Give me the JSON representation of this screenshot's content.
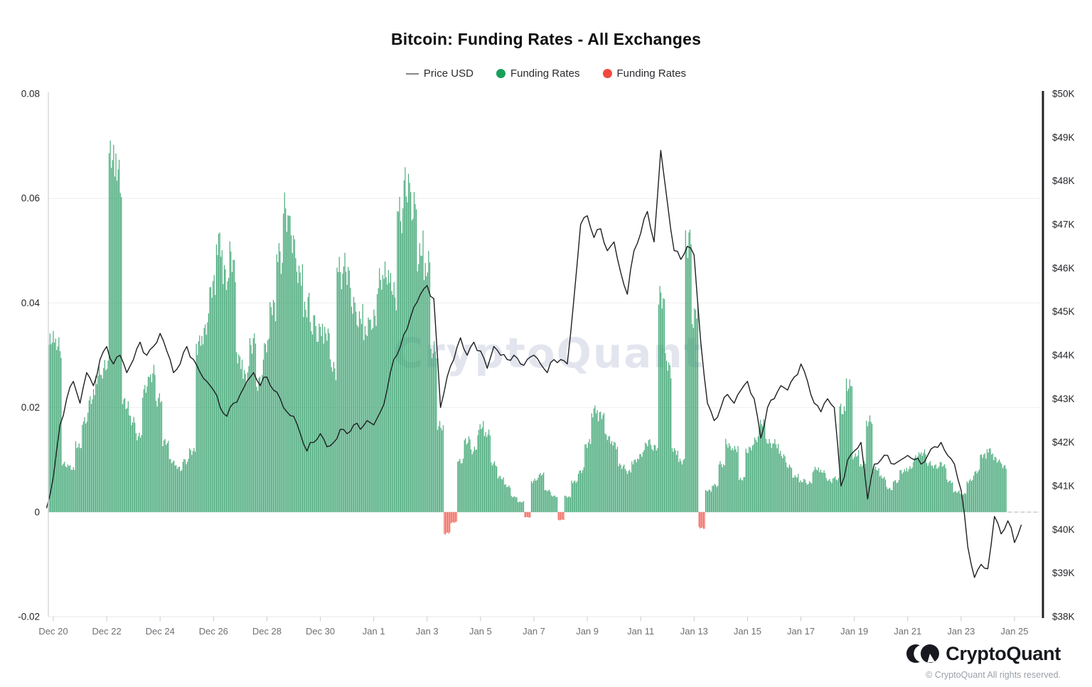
{
  "title": "Bitcoin: Funding Rates - All Exchanges",
  "legend": [
    {
      "label": "Price USD",
      "marker": "line",
      "color": "#85858b"
    },
    {
      "label": "Funding Rates",
      "marker": "dot",
      "color": "#18a05a"
    },
    {
      "label": "Funding Rates",
      "marker": "dot",
      "color": "#f04a3e"
    }
  ],
  "watermark": "CryptoQuant",
  "footer": {
    "brand": "CryptoQuant",
    "copyright": "© CryptoQuant All rights reserved."
  },
  "chart_data": {
    "type": "mixed",
    "title": "Bitcoin: Funding Rates - All Exchanges",
    "grid": "horizontal-only",
    "legend_position": "top-center",
    "watermark_color": "#e3e5ee",
    "left_axis": {
      "name": "Funding Rates",
      "min": -0.02,
      "max": 0.08,
      "ticks": [
        {
          "v": 0.08,
          "label": "0.08"
        },
        {
          "v": 0.06,
          "label": "0.06"
        },
        {
          "v": 0.04,
          "label": "0.04"
        },
        {
          "v": 0.02,
          "label": "0.02"
        },
        {
          "v": 0,
          "label": "0"
        },
        {
          "v": -0.02,
          "label": "-0.02"
        }
      ]
    },
    "right_axis": {
      "name": "Price USD",
      "min": 38000,
      "max": 50000,
      "ticks": [
        {
          "v": 50000,
          "label": "$50K"
        },
        {
          "v": 49000,
          "label": "$49K"
        },
        {
          "v": 48000,
          "label": "$48K"
        },
        {
          "v": 47000,
          "label": "$47K"
        },
        {
          "v": 46000,
          "label": "$46K"
        },
        {
          "v": 45000,
          "label": "$45K"
        },
        {
          "v": 44000,
          "label": "$44K"
        },
        {
          "v": 43000,
          "label": "$43K"
        },
        {
          "v": 42000,
          "label": "$42K"
        },
        {
          "v": 41000,
          "label": "$41K"
        },
        {
          "v": 40000,
          "label": "$40K"
        },
        {
          "v": 39000,
          "label": "$39K"
        },
        {
          "v": 38000,
          "label": "$38K"
        }
      ]
    },
    "x_axis": {
      "start_label": "Dec 20",
      "ticks": [
        {
          "day": 0,
          "label": "Dec 20"
        },
        {
          "day": 2,
          "label": "Dec 22"
        },
        {
          "day": 4,
          "label": "Dec 24"
        },
        {
          "day": 6,
          "label": "Dec 26"
        },
        {
          "day": 8,
          "label": "Dec 28"
        },
        {
          "day": 10,
          "label": "Dec 30"
        },
        {
          "day": 12,
          "label": "Jan 1"
        },
        {
          "day": 14,
          "label": "Jan 3"
        },
        {
          "day": 16,
          "label": "Jan 5"
        },
        {
          "day": 18,
          "label": "Jan 7"
        },
        {
          "day": 20,
          "label": "Jan 9"
        },
        {
          "day": 22,
          "label": "Jan 11"
        },
        {
          "day": 24,
          "label": "Jan 13"
        },
        {
          "day": 26,
          "label": "Jan 15"
        },
        {
          "day": 28,
          "label": "Jan 17"
        },
        {
          "day": 30,
          "label": "Jan 19"
        },
        {
          "day": 32,
          "label": "Jan 21"
        },
        {
          "day": 34,
          "label": "Jan 23"
        },
        {
          "day": 36,
          "label": "Jan 25"
        }
      ]
    },
    "funding": {
      "name": "Funding Rates",
      "axis": "left",
      "type": "bar",
      "color_positive": "#2f9e68",
      "color_negative": "#ee4f43",
      "start_day": -0.19,
      "step_days": 0.25,
      "values": [
        0.032,
        0.031,
        0.009,
        0.0085,
        0.013,
        0.018,
        0.022,
        0.026,
        0.027,
        0.066,
        0.064,
        0.021,
        0.018,
        0.015,
        0.024,
        0.026,
        0.021,
        0.013,
        0.0095,
        0.0085,
        0.01,
        0.012,
        0.033,
        0.035,
        0.042,
        0.05,
        0.044,
        0.048,
        0.03,
        0.027,
        0.033,
        0.025,
        0.031,
        0.038,
        0.048,
        0.057,
        0.053,
        0.047,
        0.04,
        0.036,
        0.034,
        0.033,
        0.027,
        0.046,
        0.047,
        0.041,
        0.038,
        0.035,
        0.036,
        0.043,
        0.044,
        0.042,
        0.058,
        0.064,
        0.06,
        0.05,
        0.046,
        0.03,
        0.016,
        -0.004,
        -0.002,
        0.01,
        0.014,
        0.012,
        0.016,
        0.0145,
        0.009,
        0.0065,
        0.005,
        0.003,
        0.002,
        -0.001,
        0.006,
        0.007,
        0.004,
        0.003,
        -0.0015,
        0.003,
        0.006,
        0.008,
        0.013,
        0.019,
        0.018,
        0.014,
        0.013,
        0.009,
        0.008,
        0.01,
        0.011,
        0.013,
        0.012,
        0.04,
        0.028,
        0.012,
        0.01,
        0.053,
        0.038,
        -0.003,
        0.004,
        0.005,
        0.009,
        0.013,
        0.0125,
        0.0065,
        0.012,
        0.0135,
        0.0165,
        0.013,
        0.013,
        0.011,
        0.009,
        0.007,
        0.006,
        0.0055,
        0.008,
        0.0075,
        0.006,
        0.0065,
        0.02,
        0.025,
        0.011,
        0.009,
        0.017,
        0.008,
        0.0065,
        0.0045,
        0.006,
        0.008,
        0.0085,
        0.0105,
        0.011,
        0.009,
        0.0085,
        0.009,
        0.006,
        0.004,
        0.0035,
        0.006,
        0.0075,
        0.0105,
        0.0115,
        0.01,
        0.009
      ]
    },
    "price": {
      "name": "Price USD",
      "axis": "right",
      "type": "line",
      "color": "#1f1f23",
      "unit": "USD thousands",
      "start_day": -0.25,
      "step_days": 0.25,
      "values": [
        40.5,
        41.2,
        42.4,
        43.0,
        43.4,
        42.9,
        43.6,
        43.3,
        43.9,
        44.2,
        43.8,
        44.0,
        43.6,
        43.9,
        44.3,
        44.0,
        44.2,
        44.5,
        44.1,
        43.6,
        43.8,
        44.2,
        43.9,
        43.6,
        43.4,
        43.2,
        42.8,
        42.6,
        42.9,
        43.1,
        43.4,
        43.6,
        43.3,
        43.5,
        43.2,
        43.0,
        42.7,
        42.6,
        42.2,
        41.8,
        42.0,
        42.2,
        41.9,
        42.0,
        42.3,
        42.2,
        42.4,
        42.3,
        42.5,
        42.4,
        42.7,
        43.2,
        43.9,
        44.2,
        44.6,
        45.1,
        45.4,
        45.6,
        45.3,
        42.8,
        43.5,
        43.9,
        44.4,
        44.0,
        44.3,
        44.1,
        43.7,
        44.2,
        44.0,
        43.9,
        44.0,
        43.8,
        43.9,
        44.0,
        43.8,
        43.6,
        43.9,
        43.9,
        43.8,
        45.3,
        47.0,
        47.2,
        46.7,
        46.9,
        46.4,
        46.6,
        45.9,
        45.4,
        46.4,
        46.8,
        47.3,
        46.6,
        48.7,
        47.5,
        46.4,
        46.2,
        46.5,
        46.3,
        44.3,
        42.9,
        42.5,
        42.8,
        43.1,
        42.9,
        43.2,
        43.4,
        43.0,
        42.1,
        42.8,
        43.0,
        43.3,
        43.2,
        43.5,
        43.8,
        43.4,
        42.9,
        42.7,
        43.0,
        42.8,
        41.0,
        41.6,
        41.8,
        42.0,
        40.7,
        41.5,
        41.6,
        41.7,
        41.5,
        41.6,
        41.7,
        41.6,
        41.5,
        41.7,
        41.9,
        42.0,
        41.7,
        41.5,
        40.9,
        39.6,
        38.9,
        39.2,
        39.1,
        40.3,
        39.9,
        40.2,
        39.7,
        40.1
      ]
    }
  }
}
